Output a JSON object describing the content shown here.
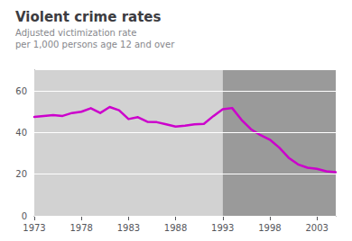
{
  "chart_data": {
    "type": "line",
    "title": "Violent crime rates",
    "subtitle": [
      "Adjusted victimization rate",
      "per 1,000 persons age 12 and over"
    ],
    "x": [
      1973,
      1974,
      1975,
      1976,
      1977,
      1978,
      1979,
      1980,
      1981,
      1982,
      1983,
      1984,
      1985,
      1986,
      1987,
      1988,
      1989,
      1990,
      1991,
      1992,
      1993,
      1994,
      1995,
      1996,
      1997,
      1998,
      1999,
      2000,
      2001,
      2002,
      2003,
      2004,
      2005
    ],
    "values": [
      47.5,
      48.0,
      48.4,
      48.0,
      49.4,
      50.0,
      51.7,
      49.4,
      52.3,
      50.7,
      46.5,
      47.4,
      45.2,
      45.0,
      44.0,
      42.9,
      43.3,
      44.0,
      44.2,
      47.9,
      51.2,
      51.8,
      46.1,
      41.6,
      38.8,
      36.6,
      32.8,
      27.9,
      24.7,
      23.1,
      22.6,
      21.4,
      21.0
    ],
    "color": "#cc00cc",
    "xlim": [
      1973,
      2005
    ],
    "xticks": [
      1973,
      1978,
      1983,
      1988,
      1993,
      1998,
      2003
    ],
    "ylim": [
      0,
      70
    ],
    "yticks": [
      0,
      20,
      40,
      60
    ],
    "grid": true,
    "shaded_regions": [
      {
        "from": 1973,
        "to": 1993,
        "color": "#d2d2d2"
      },
      {
        "from": 1993,
        "to": 2005,
        "color": "#9a9a9a"
      }
    ]
  }
}
